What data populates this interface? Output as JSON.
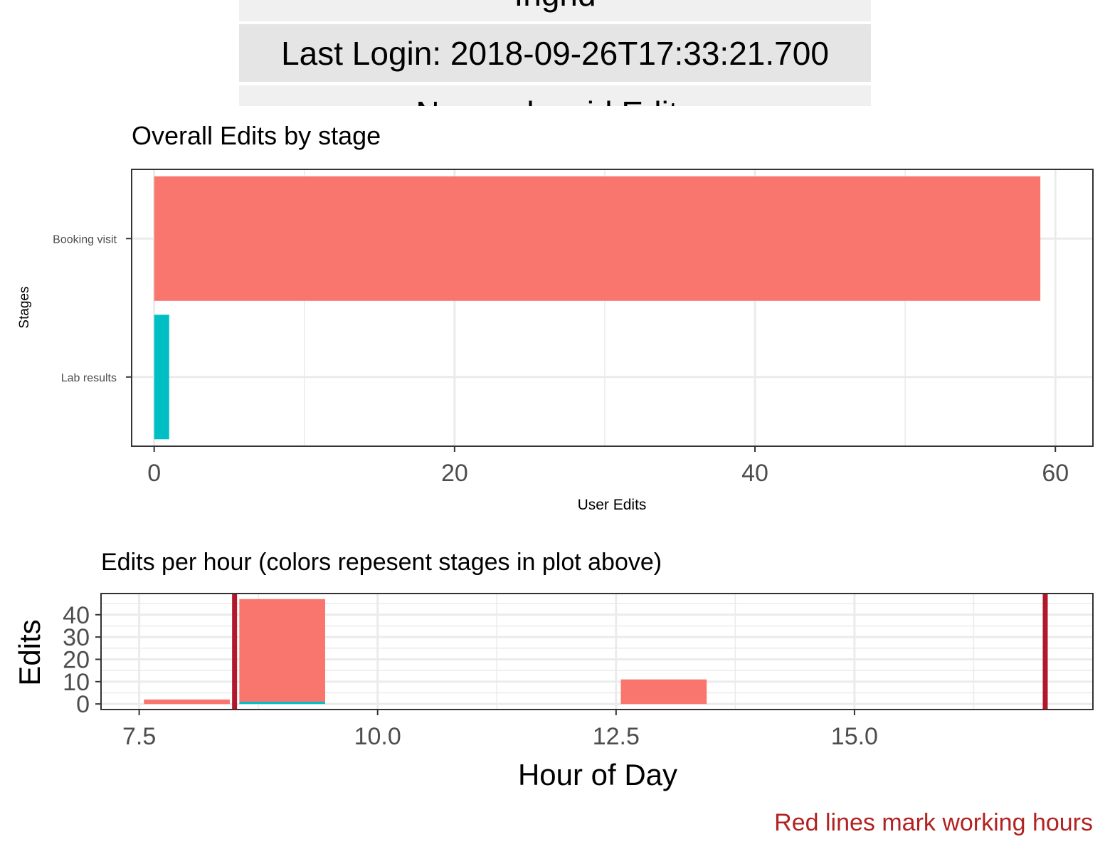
{
  "info_table": {
    "name": "Ingrid",
    "last_login": "Last Login: 2018-09-26T17:33:21.700",
    "edits_partial": "Non-redcapid Edits"
  },
  "chart_data": [
    {
      "type": "bar",
      "orientation": "horizontal",
      "title": "Overall Edits by stage",
      "xlabel": "User Edits",
      "ylabel": "Stages",
      "categories": [
        "Booking visit",
        "Lab results"
      ],
      "values": [
        59,
        1
      ],
      "colors": [
        "#f8766d",
        "#00bfc4"
      ],
      "xlim": [
        -1.5,
        62.5
      ],
      "xticks": [
        0,
        20,
        40,
        60
      ],
      "xtick_labels": [
        "0",
        "20",
        "40",
        "60"
      ],
      "grid": true
    },
    {
      "type": "bar",
      "stacked": true,
      "title": "Edits per hour (colors repesent stages in plot above)",
      "xlabel": "Hour of Day",
      "ylabel": "Edits",
      "xlim": [
        7.1,
        17.5
      ],
      "ylim": [
        -2.5,
        49.5
      ],
      "xticks": [
        7.5,
        10.0,
        12.5,
        15.0
      ],
      "xtick_labels": [
        "7.5",
        "10.0",
        "12.5",
        "15.0"
      ],
      "yticks": [
        0,
        10,
        20,
        30,
        40
      ],
      "ytick_labels": [
        "0",
        "10",
        "20",
        "30",
        "40"
      ],
      "bar_width": 0.9,
      "series": [
        {
          "color": "#00bfc4",
          "x": [
            8,
            9,
            13
          ],
          "values": [
            0,
            1,
            0
          ]
        },
        {
          "color": "#f8766d",
          "x": [
            8,
            9,
            13
          ],
          "values": [
            2,
            46,
            11
          ]
        }
      ],
      "working_hours": [
        8.5,
        17
      ],
      "working_hours_color": "#b2182b",
      "caption": "Red lines mark working hours",
      "caption_color": "#b22222",
      "grid": true
    }
  ]
}
